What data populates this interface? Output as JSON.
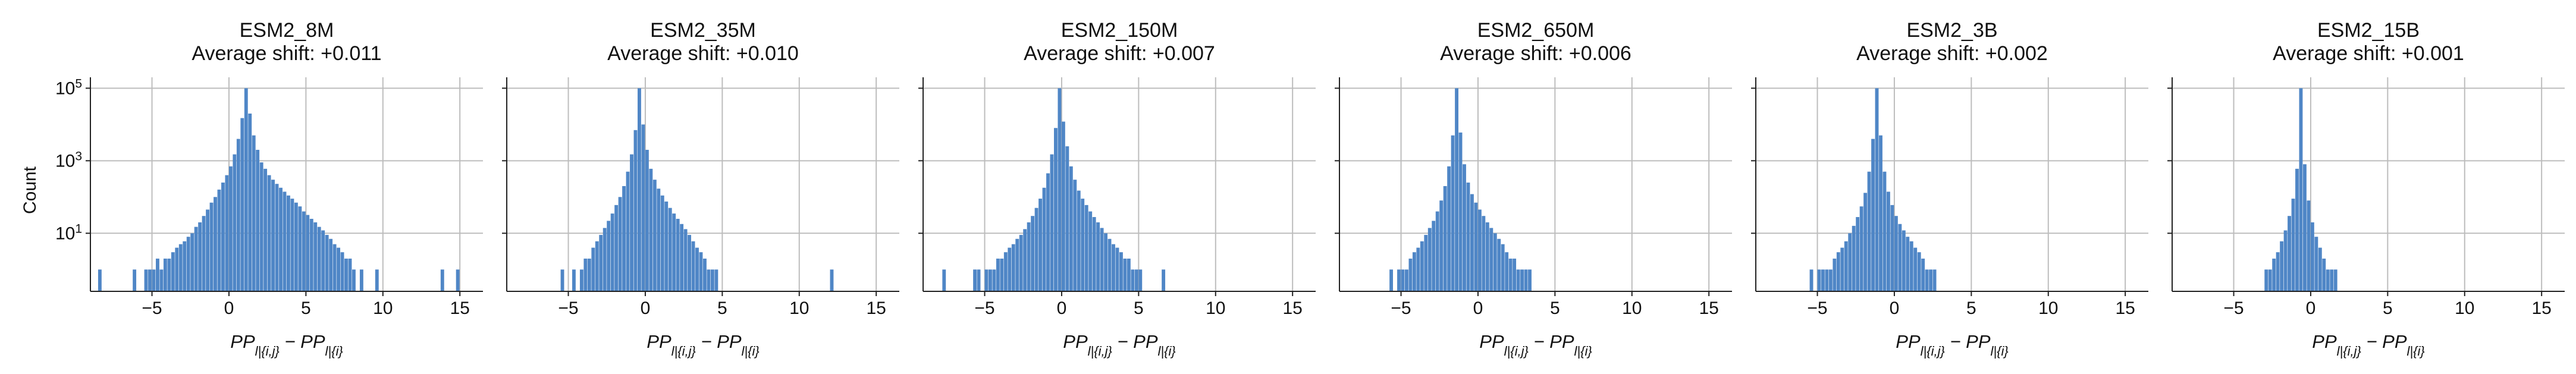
{
  "chart_data": {
    "type": "bar",
    "ylabel": "Count",
    "xlabel": "PP_{l|{i,j}} − PP_{l|{i}}",
    "ylim": [
      0.25,
      200000
    ],
    "yscale": "log",
    "y_ticks": [
      {
        "value": 10,
        "base": "10",
        "exp": "1"
      },
      {
        "value": 1000,
        "base": "10",
        "exp": "3"
      },
      {
        "value": 100000,
        "base": "10",
        "exp": "5"
      }
    ],
    "xlim": [
      -9,
      16.5
    ],
    "x_ticks": [
      {
        "value": -5,
        "label": "−5"
      },
      {
        "value": 0,
        "label": "0"
      },
      {
        "value": 5,
        "label": "5"
      },
      {
        "value": 10,
        "label": "10"
      },
      {
        "value": 15,
        "label": "15"
      }
    ],
    "bin_width": 0.25,
    "grid": true,
    "color": "#4f86c6",
    "panels": [
      {
        "name": "ESM2_8M",
        "title_line1": "ESM2_8M",
        "title_line2": "Average shift: +0.011",
        "bin_start": -8.5,
        "counts": [
          1,
          0,
          0,
          0,
          0,
          0,
          0,
          0,
          0,
          1,
          0,
          0,
          1,
          1,
          1,
          2,
          1,
          2,
          2,
          3,
          4,
          5,
          6,
          8,
          10,
          15,
          20,
          30,
          45,
          70,
          100,
          160,
          250,
          400,
          700,
          1500,
          4000,
          15000,
          100000,
          20000,
          5000,
          2000,
          900,
          600,
          400,
          300,
          230,
          180,
          140,
          110,
          90,
          70,
          55,
          40,
          32,
          25,
          20,
          15,
          12,
          9,
          7,
          5,
          4,
          3,
          2,
          2,
          1,
          0,
          1,
          0,
          0,
          0,
          1,
          0,
          0,
          0,
          0,
          0,
          0,
          0,
          0,
          0,
          0,
          0,
          0,
          0,
          0,
          0,
          0,
          1,
          0,
          0,
          0,
          1
        ]
      },
      {
        "name": "ESM2_35M",
        "title_line1": "ESM2_35M",
        "title_line2": "Average shift: +0.010",
        "bin_start": -5.5,
        "counts": [
          1,
          0,
          0,
          1,
          0,
          1,
          2,
          2,
          4,
          6,
          9,
          14,
          22,
          35,
          60,
          100,
          200,
          500,
          1500,
          7000,
          100000,
          10000,
          2000,
          600,
          300,
          170,
          110,
          75,
          50,
          35,
          25,
          18,
          13,
          9,
          6,
          4,
          3,
          2,
          1,
          1,
          1,
          0,
          0,
          0,
          0,
          0,
          0,
          0,
          0,
          0,
          0,
          0,
          0,
          0,
          0,
          0,
          0,
          0,
          0,
          0,
          0,
          0,
          0,
          0,
          0,
          0,
          0,
          0,
          0,
          0,
          1
        ]
      },
      {
        "name": "ESM2_150M",
        "title_line1": "ESM2_150M",
        "title_line2": "Average shift: +0.007",
        "bin_start": -7.75,
        "counts": [
          1,
          0,
          0,
          0,
          0,
          0,
          0,
          0,
          1,
          1,
          0,
          1,
          1,
          1,
          2,
          2,
          3,
          4,
          5,
          7,
          9,
          13,
          20,
          30,
          50,
          90,
          180,
          450,
          1500,
          8000,
          100000,
          12000,
          2500,
          700,
          300,
          150,
          90,
          60,
          40,
          28,
          20,
          14,
          10,
          7,
          5,
          4,
          3,
          2,
          2,
          1,
          1,
          1,
          0,
          0,
          0,
          0,
          0,
          1
        ]
      },
      {
        "name": "ESM2_650M",
        "title_line1": "ESM2_650M",
        "title_line2": "Average shift: +0.006",
        "bin_start": -5.75,
        "counts": [
          1,
          0,
          1,
          1,
          1,
          2,
          3,
          4,
          6,
          9,
          14,
          22,
          40,
          80,
          200,
          700,
          5000,
          100000,
          6000,
          800,
          250,
          120,
          70,
          45,
          30,
          20,
          14,
          10,
          7,
          5,
          3,
          2,
          2,
          1,
          1,
          1,
          1
        ]
      },
      {
        "name": "ESM2_3B",
        "title_line1": "ESM2_3B",
        "title_line2": "Average shift: +0.002",
        "bin_start": -5.5,
        "counts": [
          1,
          0,
          1,
          1,
          1,
          1,
          2,
          3,
          4,
          6,
          10,
          16,
          28,
          55,
          130,
          500,
          4000,
          100000,
          5000,
          500,
          140,
          60,
          30,
          18,
          12,
          8,
          6,
          4,
          3,
          2,
          1,
          1,
          1
        ]
      },
      {
        "name": "ESM2_15B",
        "title_line1": "ESM2_15B",
        "title_line2": "Average shift: +0.001",
        "bin_start": -3.0,
        "counts": [
          1,
          1,
          2,
          3,
          6,
          12,
          30,
          90,
          600,
          100000,
          800,
          80,
          20,
          8,
          4,
          2,
          1,
          1,
          1
        ]
      }
    ]
  }
}
